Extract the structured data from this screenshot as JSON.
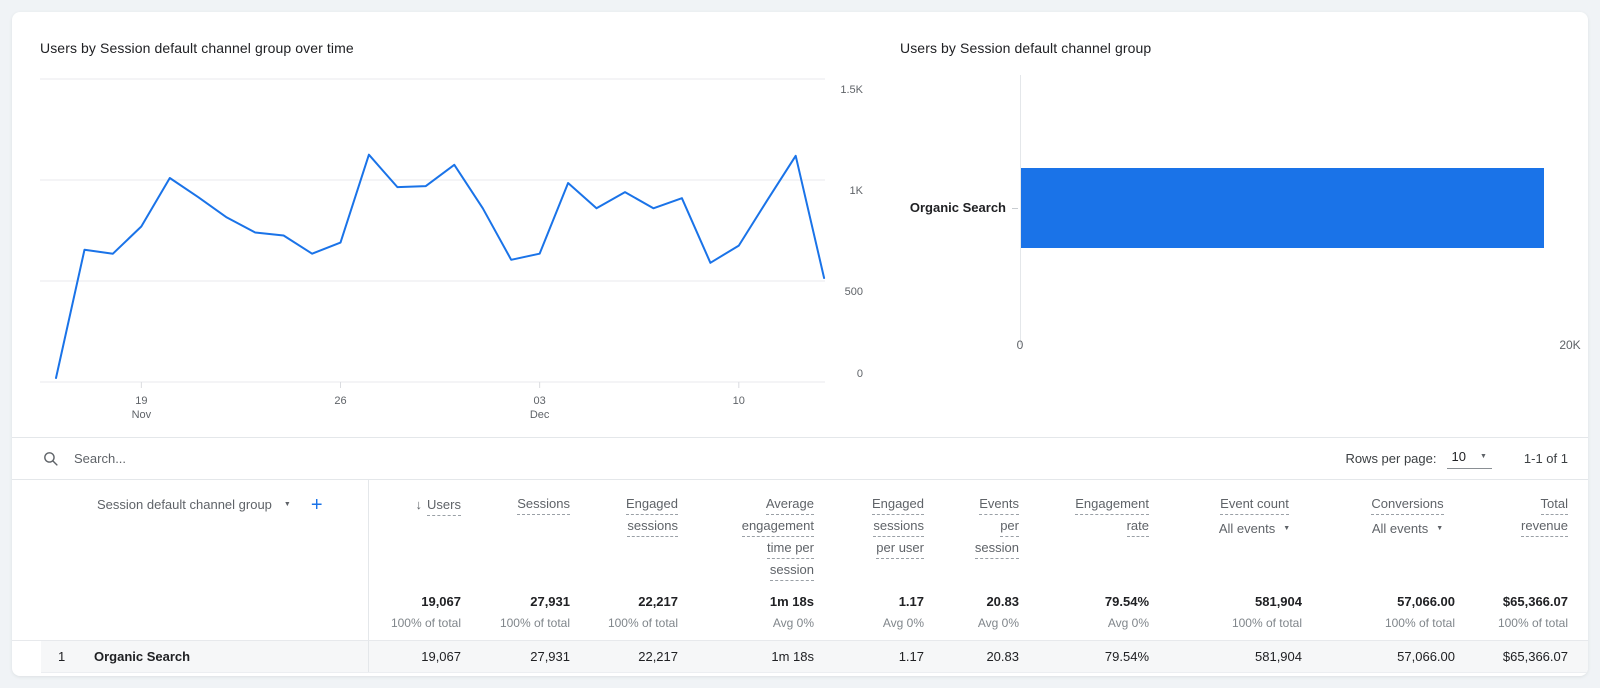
{
  "colors": {
    "accent_blue": "#1a73e8",
    "gridline": "#e8eaed",
    "axis_label": "#5f6368"
  },
  "chart_data": [
    {
      "type": "line",
      "title": "Users by Session default channel group over time",
      "xlabel": "",
      "ylabel": "",
      "ylim": [
        0,
        1500
      ],
      "grid": true,
      "legend": "none",
      "x": [
        "Nov 16",
        "Nov 17",
        "Nov 18",
        "Nov 19",
        "Nov 20",
        "Nov 21",
        "Nov 22",
        "Nov 23",
        "Nov 24",
        "Nov 25",
        "Nov 26",
        "Nov 27",
        "Nov 28",
        "Nov 29",
        "Nov 30",
        "Dec 1",
        "Dec 2",
        "Dec 3",
        "Dec 4",
        "Dec 5",
        "Dec 6",
        "Dec 7",
        "Dec 8",
        "Dec 9",
        "Dec 10",
        "Dec 11",
        "Dec 12",
        "Dec 13"
      ],
      "series": [
        {
          "name": "Users",
          "color": "#1a73e8",
          "values": [
            20,
            655,
            635,
            770,
            1010,
            915,
            815,
            740,
            725,
            635,
            690,
            1125,
            965,
            970,
            1075,
            860,
            605,
            635,
            985,
            860,
            940,
            860,
            910,
            590,
            675,
            900,
            1120,
            515
          ]
        }
      ],
      "x_tick_indices": [
        3,
        10,
        17,
        24
      ],
      "x_tick_labels": [
        [
          "19",
          "Nov"
        ],
        [
          "26"
        ],
        [
          "03",
          "Dec"
        ],
        [
          "10"
        ]
      ],
      "y_ticks": [
        {
          "value": 0,
          "label": "0"
        },
        {
          "value": 500,
          "label": "500"
        },
        {
          "value": 1000,
          "label": "1K"
        },
        {
          "value": 1500,
          "label": "1.5K"
        }
      ]
    },
    {
      "type": "bar",
      "orientation": "horizontal",
      "title": "Users by Session default channel group",
      "categories": [
        "Organic Search"
      ],
      "values": [
        19067
      ],
      "color": "#1a73e8",
      "xlim": [
        0,
        20000
      ],
      "x_tick_labels": [
        "0",
        "20K"
      ]
    }
  ],
  "table": {
    "search_placeholder": "Search...",
    "rows_per_page_label": "Rows per page:",
    "rows_per_page_value": "10",
    "pagination_range": "1-1 of 1",
    "dimension_header": "Session default channel group",
    "add_metric_label": "+",
    "metrics": [
      {
        "label_lines": [
          "Users"
        ],
        "sorted": true,
        "total": "19,067",
        "total_sub": "100% of total"
      },
      {
        "label_lines": [
          "Sessions"
        ],
        "total": "27,931",
        "total_sub": "100% of total"
      },
      {
        "label_lines": [
          "Engaged",
          "sessions"
        ],
        "total": "22,217",
        "total_sub": "100% of total"
      },
      {
        "label_lines": [
          "Average",
          "engagement",
          "time per",
          "session"
        ],
        "total": "1m 18s",
        "total_sub": "Avg 0%"
      },
      {
        "label_lines": [
          "Engaged",
          "sessions",
          "per user"
        ],
        "total": "1.17",
        "total_sub": "Avg 0%"
      },
      {
        "label_lines": [
          "Events",
          "per",
          "session"
        ],
        "total": "20.83",
        "total_sub": "Avg 0%"
      },
      {
        "label_lines": [
          "Engagement",
          "rate"
        ],
        "total": "79.54%",
        "total_sub": "Avg 0%"
      },
      {
        "label_lines": [
          "Event count"
        ],
        "filter": "All events",
        "total": "581,904",
        "total_sub": "100% of total"
      },
      {
        "label_lines": [
          "Conversions"
        ],
        "filter": "All events",
        "total": "57,066.00",
        "total_sub": "100% of total"
      },
      {
        "label_lines": [
          "Total",
          "revenue"
        ],
        "total": "$65,366.07",
        "total_sub": "100% of total"
      }
    ],
    "rows": [
      {
        "index": "1",
        "dimension": "Organic Search",
        "values": [
          "19,067",
          "27,931",
          "22,217",
          "1m 18s",
          "1.17",
          "20.83",
          "79.54%",
          "581,904",
          "57,066.00",
          "$65,366.07"
        ]
      }
    ]
  }
}
